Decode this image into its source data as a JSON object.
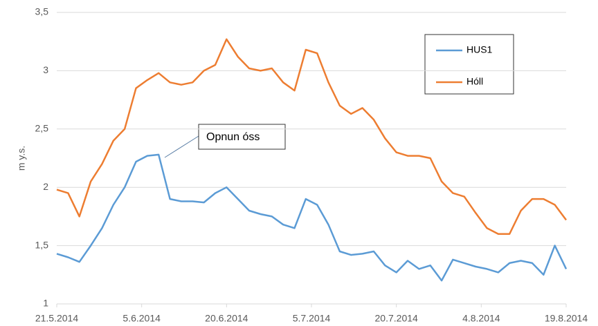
{
  "chart_data": {
    "type": "line",
    "y_label": "m y.s.",
    "annotation": "Opnun óss",
    "x": [
      "2014-05-21",
      "2014-05-23",
      "2014-05-25",
      "2014-05-27",
      "2014-05-29",
      "2014-05-31",
      "2014-06-02",
      "2014-06-04",
      "2014-06-06",
      "2014-06-08",
      "2014-06-10",
      "2014-06-12",
      "2014-06-14",
      "2014-06-16",
      "2014-06-18",
      "2014-06-20",
      "2014-06-22",
      "2014-06-24",
      "2014-06-26",
      "2014-06-28",
      "2014-06-30",
      "2014-07-02",
      "2014-07-04",
      "2014-07-06",
      "2014-07-08",
      "2014-07-10",
      "2014-07-12",
      "2014-07-14",
      "2014-07-16",
      "2014-07-18",
      "2014-07-20",
      "2014-07-22",
      "2014-07-24",
      "2014-07-26",
      "2014-07-28",
      "2014-07-30",
      "2014-08-01",
      "2014-08-03",
      "2014-08-05",
      "2014-08-07",
      "2014-08-09",
      "2014-08-11",
      "2014-08-13",
      "2014-08-15",
      "2014-08-17",
      "2014-08-19"
    ],
    "series": [
      {
        "name": "HUS1",
        "color": "#5b9bd5",
        "values": [
          1.43,
          1.4,
          1.36,
          1.5,
          1.65,
          1.85,
          2.0,
          2.22,
          2.27,
          2.28,
          1.9,
          1.88,
          1.88,
          1.87,
          1.95,
          2.0,
          1.9,
          1.8,
          1.77,
          1.75,
          1.68,
          1.65,
          1.9,
          1.85,
          1.68,
          1.45,
          1.42,
          1.43,
          1.45,
          1.33,
          1.27,
          1.37,
          1.3,
          1.33,
          1.2,
          1.38,
          1.35,
          1.32,
          1.3,
          1.27,
          1.35,
          1.37,
          1.35,
          1.25,
          1.5,
          1.3
        ]
      },
      {
        "name": "Hóll",
        "color": "#ed7d31",
        "values": [
          1.98,
          1.95,
          1.75,
          2.05,
          2.2,
          2.4,
          2.5,
          2.85,
          2.92,
          2.98,
          2.9,
          2.88,
          2.9,
          3.0,
          3.05,
          3.27,
          3.12,
          3.02,
          3.0,
          3.02,
          2.9,
          2.83,
          3.18,
          3.15,
          2.9,
          2.7,
          2.63,
          2.68,
          2.58,
          2.42,
          2.3,
          2.27,
          2.27,
          2.25,
          2.05,
          1.95,
          1.92,
          1.78,
          1.65,
          1.6,
          1.6,
          1.8,
          1.9,
          1.9,
          1.85,
          1.72
        ]
      }
    ],
    "xlim": [
      "2014-05-21",
      "2014-08-19"
    ],
    "xticks": [
      {
        "value": "2014-05-21",
        "label": "21.5.2014"
      },
      {
        "value": "2014-06-05",
        "label": "5.6.2014"
      },
      {
        "value": "2014-06-20",
        "label": "20.6.2014"
      },
      {
        "value": "2014-07-05",
        "label": "5.7.2014"
      },
      {
        "value": "2014-07-20",
        "label": "20.7.2014"
      },
      {
        "value": "2014-08-04",
        "label": "4.8.2014"
      },
      {
        "value": "2014-08-19",
        "label": "19.8.2014"
      }
    ],
    "ylim": [
      1,
      3.5
    ],
    "yticks": [
      1,
      {
        "value": 1.5,
        "label": "1,5"
      },
      2,
      {
        "value": 2.5,
        "label": "2,5"
      },
      3,
      {
        "value": 3.5,
        "label": "3,5"
      }
    ],
    "grid": true
  }
}
